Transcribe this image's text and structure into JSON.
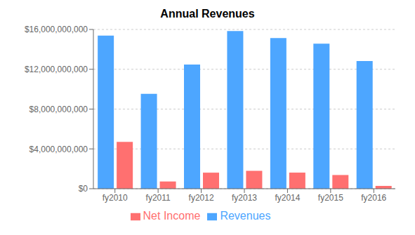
{
  "chart_data": {
    "type": "bar",
    "title": "Annual Revenues",
    "categories": [
      "fy2010",
      "fy2011",
      "fy2012",
      "fy2013",
      "fy2014",
      "fy2015",
      "fy2016"
    ],
    "series": [
      {
        "name": "Revenues",
        "color": "#4DA6FF",
        "values": [
          15376000000,
          9526000000,
          12478000000,
          15849000000,
          15130000000,
          14572000000,
          12835000000
        ]
      },
      {
        "name": "Net Income",
        "color": "#FF7070",
        "values": [
          4706000000,
          726000000,
          1613000000,
          1797000000,
          1617000000,
          1376000000,
          282000000
        ]
      }
    ],
    "ylim": [
      0,
      16000000000
    ],
    "yticks": [
      {
        "value": 0,
        "label": "$0"
      },
      {
        "value": 4000000000,
        "label": "$4,000,000,000"
      },
      {
        "value": 8000000000,
        "label": "$8,000,000,000"
      },
      {
        "value": 12000000000,
        "label": "$12,000,000,000"
      },
      {
        "value": 16000000000,
        "label": "$16,000,000,000"
      }
    ],
    "grid": true,
    "legend": "bottom"
  }
}
